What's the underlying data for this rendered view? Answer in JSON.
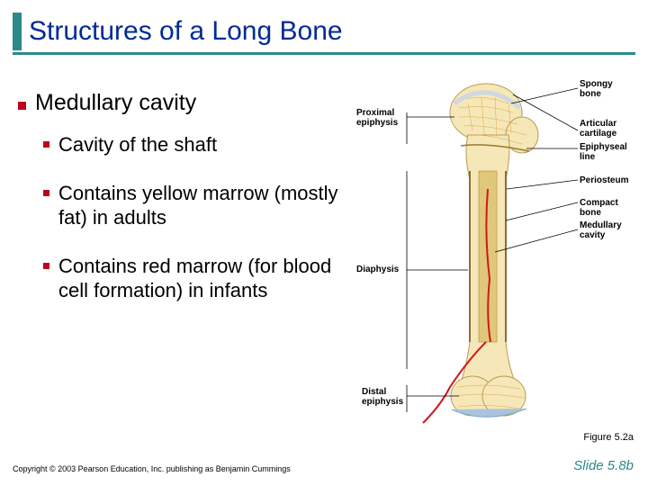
{
  "title": "Structures of a Long Bone",
  "colors": {
    "accent": "#2a8a8a",
    "title_text": "#002b95",
    "bullet": "#c0001e",
    "bone_fill": "#f6e7b8",
    "bone_edge": "#b89c50",
    "spongy": "#d6a84a",
    "cartilage": "#cfd8e0",
    "artery": "#d01818",
    "cavity": "#e0c878"
  },
  "bullets": {
    "lvl1": "Medullary cavity",
    "sub1": "Cavity of the shaft",
    "sub2": "Contains yellow marrow (mostly fat) in adults",
    "sub3": "Contains red marrow (for blood cell formation) in infants"
  },
  "diagram": {
    "type": "infographic",
    "labels": {
      "spongy": "Spongy\nbone",
      "prox_epi": "Proximal\nepiphysis",
      "artic": "Articular\ncartilage",
      "epiline": "Epiphyseal\nline",
      "perio": "Periosteum",
      "compact": "Compact bone",
      "medcav": "Medullary\ncavity",
      "diaph": "Diaphysis",
      "dist_epi": "Distal\nepiphysis"
    }
  },
  "figure_ref": "Figure 5.2a",
  "slide": "Slide 5.8b",
  "copyright": "Copyright © 2003 Pearson Education, Inc. publishing as Benjamin Cummings"
}
